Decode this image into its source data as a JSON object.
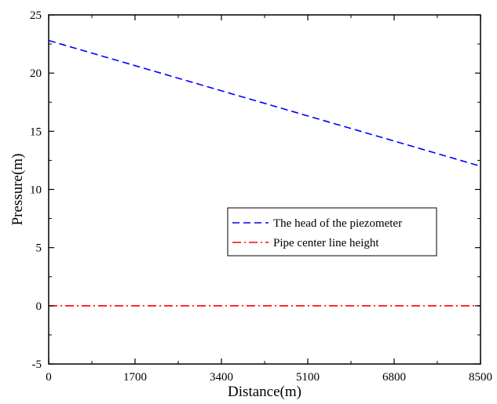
{
  "chart_data": {
    "type": "line",
    "title": "",
    "xlabel": "Distance(m)",
    "ylabel": "Pressure(m)",
    "xlim": [
      0,
      8500
    ],
    "ylim": [
      -5,
      25
    ],
    "xticks": [
      0,
      1700,
      3400,
      5100,
      6800,
      8500
    ],
    "yticks": [
      -5,
      0,
      5,
      10,
      15,
      20,
      25
    ],
    "xtick_labels": [
      "0",
      "1700",
      "3400",
      "5100",
      "6800",
      "8500"
    ],
    "ytick_labels": [
      "-5",
      "0",
      "5",
      "10",
      "15",
      "20",
      "25"
    ],
    "grid": false,
    "legend_position": "middle-right",
    "series": [
      {
        "name": "The head of the piezometer",
        "x": [
          0,
          8500
        ],
        "y": [
          22.8,
          12.0
        ],
        "color": "#0000ff",
        "style": "dashed"
      },
      {
        "name": "Pipe center line height",
        "x": [
          0,
          8500
        ],
        "y": [
          0,
          0
        ],
        "color": "#ff0000",
        "style": "dash-dot"
      }
    ]
  }
}
